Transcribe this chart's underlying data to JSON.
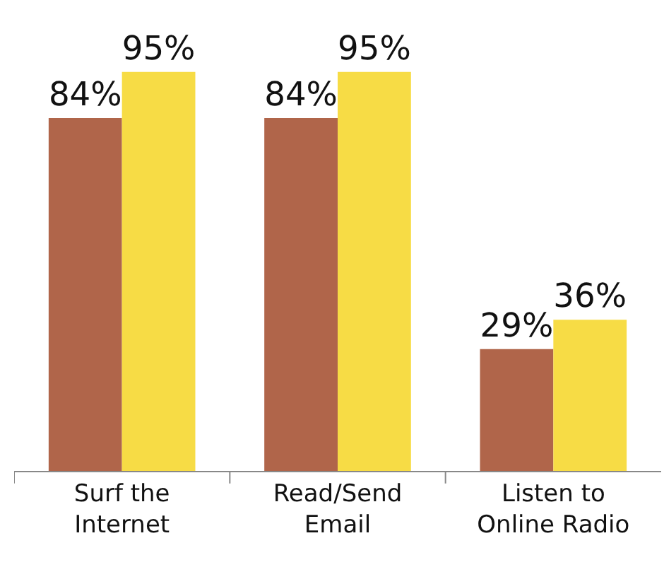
{
  "chart_data": {
    "type": "bar",
    "categories": [
      "Surf the\nInternet",
      "Read/Send\nEmail",
      "Listen to\nOnline Radio"
    ],
    "series": [
      {
        "color": "#b0654a",
        "values": [
          84,
          84,
          29
        ],
        "value_labels": [
          "84%",
          "84%",
          "29%"
        ]
      },
      {
        "color": "#f7dc45",
        "values": [
          95,
          95,
          36
        ],
        "value_labels": [
          "95%",
          "95%",
          "36%"
        ]
      }
    ],
    "tick_labels": "x"
  }
}
